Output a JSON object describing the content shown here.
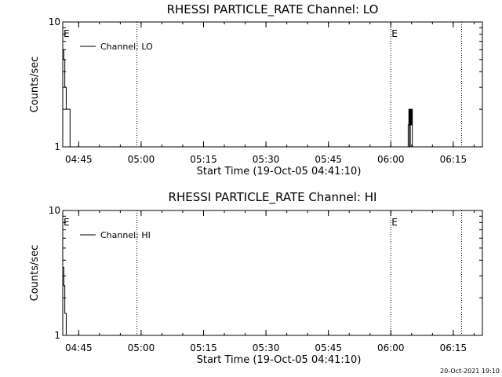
{
  "chart_data": [
    {
      "type": "line",
      "title": "RHESSI PARTICLE_RATE Channel: LO",
      "xlabel": "Start Time (19-Oct-05 04:41:10)",
      "ylabel": "Counts/sec",
      "yscale": "log",
      "ylim": [
        1,
        10
      ],
      "y_tick_labels": [
        "1",
        "10"
      ],
      "xlim": [
        "04:41:10",
        "06:22"
      ],
      "x_tick_labels": [
        "04:45",
        "05:00",
        "05:15",
        "05:30",
        "05:45",
        "06:00",
        "06:15"
      ],
      "vlines": [
        "04:59",
        "06:00",
        "06:17"
      ],
      "event_markers": [
        {
          "label": "E",
          "x": "04:41:10"
        },
        {
          "label": "E",
          "x": "06:00"
        }
      ],
      "legend": {
        "label": "Channel: LO",
        "position": "top-left"
      },
      "series": [
        {
          "name": "Channel: LO",
          "points": [
            [
              "04:41:10",
              6.0
            ],
            [
              "04:41:25",
              5.0
            ],
            [
              "04:41:40",
              3.0
            ],
            [
              "04:42:00",
              2.0
            ],
            [
              "04:42:40",
              2.0
            ],
            [
              "04:42:55",
              1.0
            ],
            [
              "06:04",
              1.0
            ],
            [
              "06:04:10",
              1.5
            ],
            [
              "06:04:20",
              2.0
            ],
            [
              "06:04:30",
              1.0
            ],
            [
              "06:04:40",
              2.0
            ],
            [
              "06:04:50",
              1.5
            ],
            [
              "06:05:00",
              2.0
            ],
            [
              "06:05:10",
              1.0
            ]
          ]
        }
      ]
    },
    {
      "type": "line",
      "title": "RHESSI PARTICLE_RATE Channel: HI",
      "xlabel": "Start Time (19-Oct-05 04:41:10)",
      "ylabel": "Counts/sec",
      "yscale": "log",
      "ylim": [
        1,
        10
      ],
      "y_tick_labels": [
        "1",
        "10"
      ],
      "xlim": [
        "04:41:10",
        "06:22"
      ],
      "x_tick_labels": [
        "04:45",
        "05:00",
        "05:15",
        "05:30",
        "05:45",
        "06:00",
        "06:15"
      ],
      "vlines": [
        "04:59",
        "06:00",
        "06:17"
      ],
      "event_markers": [
        {
          "label": "E",
          "x": "04:41:10"
        },
        {
          "label": "E",
          "x": "06:00"
        }
      ],
      "legend": {
        "label": "Channel: HI",
        "position": "top-left"
      },
      "series": [
        {
          "name": "Channel: HI",
          "points": [
            [
              "04:41:10",
              3.5
            ],
            [
              "04:41:25",
              2.5
            ],
            [
              "04:41:40",
              1.5
            ],
            [
              "04:42:00",
              1.0
            ]
          ]
        }
      ]
    }
  ],
  "footer": {
    "timestamp": "20-Oct-2021 19:10"
  }
}
